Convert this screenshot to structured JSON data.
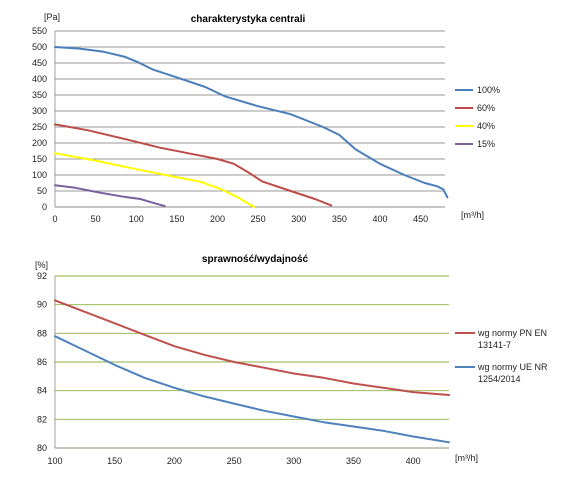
{
  "chart_data": [
    {
      "type": "line",
      "title": "charakterystyka centrali",
      "ylabel": "[Pa]",
      "xlabel": "[m³/h]",
      "xlim": [
        0,
        480
      ],
      "ylim": [
        0,
        550
      ],
      "xticks": [
        "0",
        "50",
        "100",
        "150",
        "200",
        "250",
        "300",
        "350",
        "400",
        "450"
      ],
      "yticks": [
        "0",
        "50",
        "100",
        "150",
        "200",
        "250",
        "300",
        "350",
        "400",
        "450",
        "500",
        "550"
      ],
      "grid": "horizontal",
      "legend_position": "right",
      "series": [
        {
          "name": "100%",
          "color": "#4a7ebb",
          "points": [
            [
              0,
              500
            ],
            [
              30,
              495
            ],
            [
              60,
              485
            ],
            [
              85,
              470
            ],
            [
              100,
              455
            ],
            [
              120,
              430
            ],
            [
              150,
              405
            ],
            [
              185,
              375
            ],
            [
              210,
              345
            ],
            [
              250,
              315
            ],
            [
              290,
              290
            ],
            [
              330,
              250
            ],
            [
              350,
              225
            ],
            [
              370,
              180
            ],
            [
              400,
              135
            ],
            [
              430,
              100
            ],
            [
              455,
              75
            ],
            [
              470,
              65
            ],
            [
              478,
              55
            ],
            [
              483,
              30
            ]
          ]
        },
        {
          "name": "60%",
          "color": "#be4b48",
          "points": [
            [
              0,
              258
            ],
            [
              40,
              240
            ],
            [
              90,
              210
            ],
            [
              130,
              185
            ],
            [
              170,
              165
            ],
            [
              200,
              150
            ],
            [
              220,
              135
            ],
            [
              240,
              105
            ],
            [
              255,
              80
            ],
            [
              290,
              50
            ],
            [
              320,
              25
            ],
            [
              340,
              5
            ]
          ]
        },
        {
          "name": "40%",
          "color": "#ffff00",
          "points": [
            [
              0,
              168
            ],
            [
              50,
              145
            ],
            [
              100,
              118
            ],
            [
              140,
              98
            ],
            [
              180,
              78
            ],
            [
              205,
              55
            ],
            [
              225,
              30
            ],
            [
              245,
              0
            ]
          ]
        },
        {
          "name": "15%",
          "color": "#7d60a0",
          "points": [
            [
              0,
              68
            ],
            [
              25,
              60
            ],
            [
              55,
              45
            ],
            [
              85,
              32
            ],
            [
              105,
              25
            ],
            [
              125,
              10
            ],
            [
              135,
              3
            ]
          ]
        }
      ]
    },
    {
      "type": "line",
      "title": "sprawność/wydajność",
      "ylabel": "[%]",
      "xlabel": "[m³/h]",
      "xlim": [
        100,
        430
      ],
      "ylim": [
        80,
        92
      ],
      "xticks": [
        "100",
        "150",
        "200",
        "250",
        "300",
        "350",
        "400"
      ],
      "yticks": [
        "80",
        "82",
        "84",
        "86",
        "88",
        "90",
        "92"
      ],
      "grid": "horizontal",
      "legend_position": "right",
      "series": [
        {
          "name": "wg normy PN EN 13141-7",
          "legend_lines": [
            "wg normy PN EN",
            "13141-7"
          ],
          "color": "#c0504d",
          "points": [
            [
              100,
              90.3
            ],
            [
              125,
              89.5
            ],
            [
              150,
              88.7
            ],
            [
              175,
              87.9
            ],
            [
              200,
              87.1
            ],
            [
              225,
              86.5
            ],
            [
              250,
              86.0
            ],
            [
              275,
              85.6
            ],
            [
              300,
              85.2
            ],
            [
              325,
              84.9
            ],
            [
              350,
              84.5
            ],
            [
              375,
              84.2
            ],
            [
              400,
              83.9
            ],
            [
              430,
              83.7
            ]
          ]
        },
        {
          "name": "wg normy UE NR 1254/2014",
          "legend_lines": [
            "wg normy UE NR",
            "1254/2014"
          ],
          "color": "#4f81bd",
          "points": [
            [
              100,
              87.8
            ],
            [
              125,
              86.8
            ],
            [
              150,
              85.8
            ],
            [
              175,
              84.9
            ],
            [
              200,
              84.2
            ],
            [
              225,
              83.6
            ],
            [
              250,
              83.1
            ],
            [
              275,
              82.6
            ],
            [
              300,
              82.2
            ],
            [
              325,
              81.8
            ],
            [
              350,
              81.5
            ],
            [
              375,
              81.2
            ],
            [
              400,
              80.8
            ],
            [
              430,
              80.4
            ]
          ]
        }
      ]
    }
  ]
}
